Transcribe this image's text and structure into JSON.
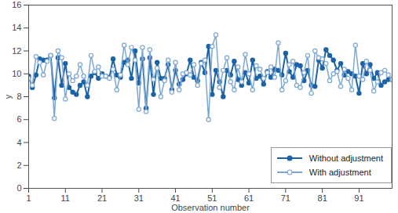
{
  "chart_data": {
    "type": "line",
    "x_label": "Observation number",
    "y_label": "y",
    "x": [
      1,
      2,
      3,
      4,
      5,
      6,
      7,
      8,
      9,
      10,
      11,
      12,
      13,
      14,
      15,
      16,
      17,
      18,
      19,
      20,
      21,
      22,
      23,
      24,
      25,
      26,
      27,
      28,
      29,
      30,
      31,
      32,
      33,
      34,
      35,
      36,
      37,
      38,
      39,
      40,
      41,
      42,
      43,
      44,
      45,
      46,
      47,
      48,
      49,
      50,
      51,
      52,
      53,
      54,
      55,
      56,
      57,
      58,
      59,
      60,
      61,
      62,
      63,
      64,
      65,
      66,
      67,
      68,
      69,
      70,
      71,
      72,
      73,
      74,
      75,
      76,
      77,
      78,
      79,
      80,
      81,
      82,
      83,
      84,
      85,
      86,
      87,
      88,
      89,
      90,
      91,
      92,
      93,
      94,
      95,
      96,
      97,
      98,
      99,
      100
    ],
    "series": [
      {
        "name": "Without adjustment",
        "color": "#1b63a6",
        "marker": "circle",
        "line_style": "solid",
        "values": [
          9.8,
          8.8,
          9.9,
          11.3,
          11.2,
          11.2,
          11.6,
          7.9,
          11.4,
          9.0,
          10.9,
          8.8,
          8.4,
          8.2,
          9.0,
          9.3,
          8.0,
          9.8,
          10.1,
          9.6,
          10.0,
          9.8,
          9.7,
          11.3,
          9.9,
          9.7,
          11.0,
          11.2,
          9.6,
          12.0,
          9.2,
          11.3,
          7.0,
          11.4,
          8.2,
          11.0,
          9.6,
          9.6,
          10.8,
          8.6,
          10.3,
          9.1,
          9.5,
          10.0,
          11.2,
          9.7,
          9.4,
          11.0,
          10.1,
          12.4,
          8.2,
          10.3,
          9.3,
          8.0,
          10.3,
          9.9,
          11.1,
          9.5,
          9.0,
          10.1,
          9.2,
          11.2,
          9.6,
          9.8,
          9.1,
          10.2,
          9.7,
          10.4,
          10.3,
          9.9,
          11.8,
          10.2,
          9.7,
          10.8,
          10.7,
          9.4,
          10.3,
          9.0,
          8.9,
          11.2,
          10.5,
          12.1,
          11.6,
          11.2,
          10.3,
          10.9,
          9.9,
          10.2,
          10.0,
          9.8,
          8.3,
          10.9,
          10.0,
          10.8,
          9.6,
          10.1,
          9.0,
          9.3,
          9.5,
          9.5
        ]
      },
      {
        "name": "With adjustment",
        "color": "#7ba7d6",
        "marker": "open-circle",
        "line_style": "solid",
        "values": [
          9.6,
          9.0,
          11.5,
          11.0,
          9.9,
          11.1,
          11.6,
          6.1,
          12.0,
          11.4,
          7.8,
          10.0,
          9.4,
          9.8,
          10.8,
          9.8,
          9.0,
          11.6,
          10.2,
          10.6,
          9.8,
          9.8,
          9.6,
          10.4,
          8.6,
          9.9,
          12.5,
          10.8,
          12.3,
          11.2,
          6.9,
          12.3,
          6.7,
          12.1,
          9.5,
          10.5,
          8.0,
          9.4,
          11.2,
          8.4,
          11.0,
          8.6,
          10.0,
          10.1,
          9.9,
          10.8,
          9.0,
          10.9,
          11.2,
          6.0,
          12.4,
          13.4,
          8.8,
          10.3,
          11.4,
          9.3,
          8.6,
          10.6,
          9.3,
          11.7,
          10.0,
          8.6,
          10.7,
          10.4,
          9.6,
          10.1,
          10.6,
          9.7,
          12.7,
          8.6,
          9.4,
          10.8,
          11.1,
          9.0,
          8.8,
          10.1,
          11.6,
          8.3,
          12.0,
          11.4,
          11.3,
          10.9,
          9.4,
          10.0,
          10.2,
          8.9,
          10.4,
          9.6,
          8.6,
          12.5,
          9.8,
          9.5,
          11.1,
          10.3,
          8.5,
          9.3,
          10.1,
          10.3,
          9.9,
          9.5
        ]
      }
    ],
    "xlim": [
      1,
      100
    ],
    "xticks": [
      1,
      11,
      21,
      31,
      41,
      51,
      61,
      71,
      81,
      91
    ],
    "ylim": [
      0,
      16
    ],
    "yticks": [
      0,
      2,
      4,
      6,
      8,
      10,
      12,
      14,
      16
    ],
    "grid": false,
    "legend": "lower right"
  }
}
